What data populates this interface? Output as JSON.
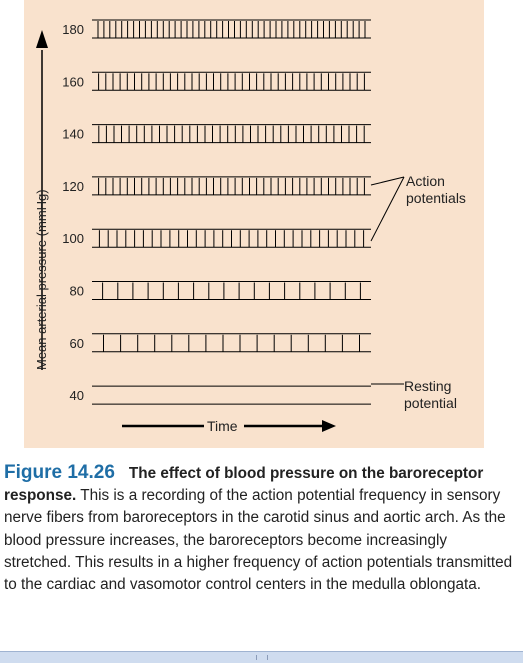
{
  "figure": {
    "y_axis_label": "Mean arterial pressure (mmHg)",
    "x_axis_label": "Time",
    "annotation_action": [
      "Action",
      "potentials"
    ],
    "annotation_resting": [
      "Resting",
      "potential"
    ],
    "traces": [
      {
        "pressure": "180",
        "spike_count": 46
      },
      {
        "pressure": "160",
        "spike_count": 38
      },
      {
        "pressure": "140",
        "spike_count": 36
      },
      {
        "pressure": "120",
        "spike_count": 38
      },
      {
        "pressure": "100",
        "spike_count": 31
      },
      {
        "pressure": "80",
        "spike_count": 18
      },
      {
        "pressure": "60",
        "spike_count": 16
      },
      {
        "pressure": "40",
        "spike_count": 0
      }
    ],
    "colors": {
      "panel": "#f9e2cd",
      "axis": "#000000"
    }
  },
  "caption": {
    "figure_number": "Figure 14.26",
    "title": "The effect of blood pressure on the baroreceptor response.",
    "body": "This is a recording of the action potential frequency in sensory nerve fibers from baroreceptors in the carotid sinus and aortic arch. As the blood pressure increases, the baroreceptors become increasingly stretched. This results in a higher frequency of action potentials transmitted to the cardiac and vasomotor control centers in the medulla oblongata."
  }
}
